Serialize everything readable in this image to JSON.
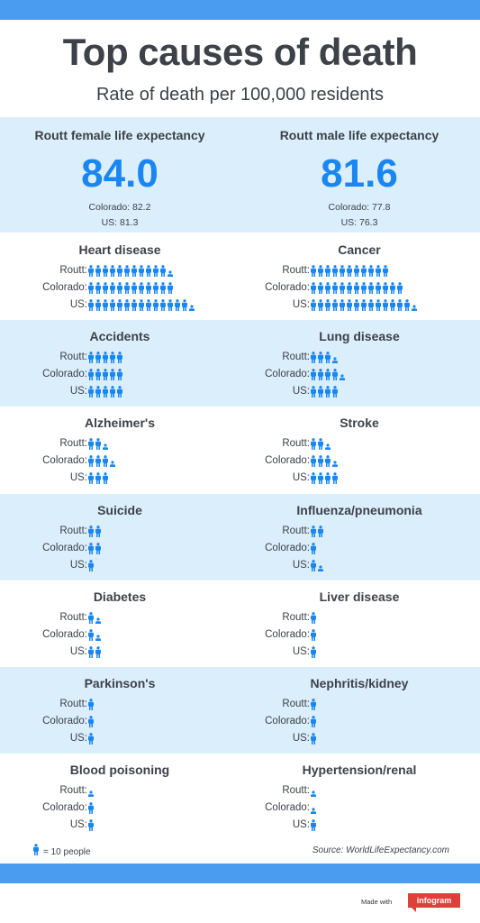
{
  "header": {
    "title": "Top causes of death",
    "subtitle": "Rate of death per 100,000 residents"
  },
  "life_expectancy": {
    "female": {
      "title": "Routt female life expectancy",
      "value": "84.0",
      "colorado": "Colorado: 82.2",
      "us": "US: 81.3"
    },
    "male": {
      "title": "Routt male life expectancy",
      "value": "81.6",
      "colorado": "Colorado: 77.8",
      "us": "US: 76.3"
    }
  },
  "row_labels": [
    "Routt:",
    "Colorado:",
    "US:"
  ],
  "icon_scale": 10,
  "causes": [
    {
      "name": "Heart disease",
      "icons": [
        11.5,
        12,
        14.5
      ]
    },
    {
      "name": "Cancer",
      "icons": [
        11,
        13,
        14.5
      ]
    },
    {
      "name": "Accidents",
      "icons": [
        5,
        5,
        5
      ]
    },
    {
      "name": "Lung disease",
      "icons": [
        3.5,
        4.5,
        4
      ]
    },
    {
      "name": "Alzheimer's",
      "icons": [
        2.5,
        3.5,
        3
      ]
    },
    {
      "name": "Stroke",
      "icons": [
        2.5,
        3.5,
        4
      ]
    },
    {
      "name": "Suicide",
      "icons": [
        2,
        2,
        1
      ]
    },
    {
      "name": "Influenza/pneumonia",
      "icons": [
        2,
        1,
        1.5
      ]
    },
    {
      "name": "Diabetes",
      "icons": [
        1.5,
        1.5,
        2
      ]
    },
    {
      "name": "Liver disease",
      "icons": [
        1,
        1,
        1
      ]
    },
    {
      "name": "Parkinson's",
      "icons": [
        1,
        1,
        1
      ]
    },
    {
      "name": "Nephritis/kidney",
      "icons": [
        1,
        1,
        1
      ]
    },
    {
      "name": "Blood poisoning",
      "icons": [
        0.5,
        1,
        1
      ]
    },
    {
      "name": "Hypertension/renal",
      "icons": [
        0.5,
        0.5,
        1
      ]
    }
  ],
  "legend": {
    "text": "= 10 people",
    "icon": "person-icon"
  },
  "source": "Source: WorldLifeExpectancy.com",
  "footer": {
    "made_with": "Made with",
    "brand": "infogram"
  },
  "colors": {
    "accent": "#1a86f2",
    "bar": "#4a9cf0",
    "band": "#dbeefc",
    "brand": "#e0403a",
    "text": "#3d4148"
  }
}
